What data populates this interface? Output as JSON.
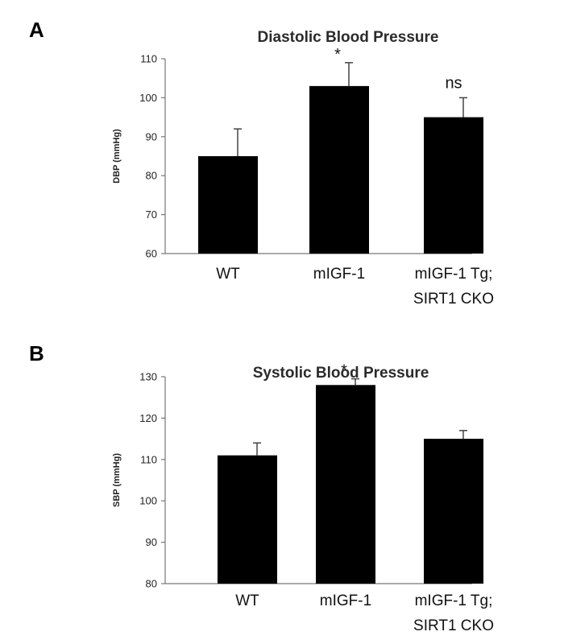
{
  "chart_data": [
    {
      "panel": "A",
      "type": "bar",
      "title": "Diastolic Blood Pressure",
      "xlabel": "",
      "ylabel": "DBP (mmHg)",
      "ylim": [
        60,
        110
      ],
      "yticks": [
        60,
        70,
        80,
        90,
        100,
        110
      ],
      "categories": [
        [
          "WT"
        ],
        [
          "mIGF-1"
        ],
        [
          "mIGF-1 Tg;",
          "SIRT1 CKO"
        ]
      ],
      "values": [
        85,
        103,
        95
      ],
      "errors": [
        7,
        6,
        5
      ],
      "annotations": [
        "",
        "*",
        "ns"
      ],
      "grid": false
    },
    {
      "panel": "B",
      "type": "bar",
      "title": "Systolic Blood Pressure",
      "xlabel": "",
      "ylabel": "SBP (mmHg)",
      "ylim": [
        80,
        130
      ],
      "yticks": [
        80,
        90,
        100,
        110,
        120,
        130
      ],
      "categories": [
        [
          "WT"
        ],
        [
          "mIGF-1"
        ],
        [
          "mIGF-1 Tg;",
          "SIRT1 CKO"
        ]
      ],
      "values": [
        111,
        128,
        115
      ],
      "errors": [
        3,
        1.5,
        2
      ],
      "annotations": [
        "",
        "*",
        ""
      ],
      "grid": false
    }
  ]
}
